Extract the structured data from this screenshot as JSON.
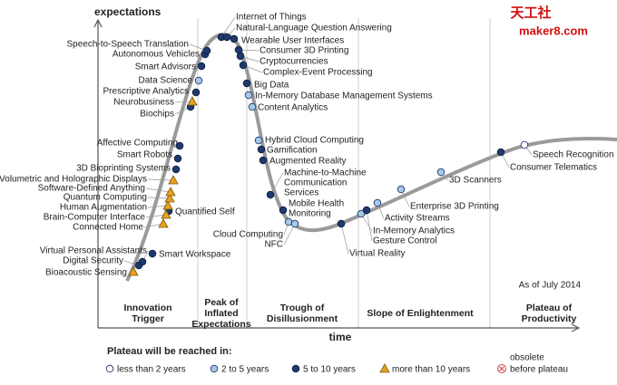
{
  "axis": {
    "y": "expectations",
    "x": "time"
  },
  "logo": {
    "name": "天工社",
    "site": "maker8.com"
  },
  "as_of": "As of July 2014",
  "phases": [
    [
      "Innovation",
      "Trigger"
    ],
    [
      "Peak of",
      "Inflated",
      "Expectations"
    ],
    [
      "Trough of",
      "Disillusionment"
    ],
    [
      "Slope of Enlightenment"
    ],
    [
      "Plateau of",
      "Productivity"
    ]
  ],
  "legend": {
    "title": "Plateau will be reached in:",
    "obsolete": [
      "obsolete",
      "before plateau"
    ]
  },
  "groups": [
    {
      "label": "less than 2 years",
      "technologies": [
        "Speech Recognition"
      ]
    },
    {
      "label": "2 to 5 years",
      "technologies": [
        "Data Science",
        "In-Memory Database Management Systems",
        "Content Analytics",
        "Hybrid Cloud Computing",
        "Cloud Computing",
        "NFC",
        "In-Memory Analytics",
        "Activity  Streams",
        "Enterprise 3D Printing",
        "3D Scanners"
      ]
    },
    {
      "label": "5 to 10 years",
      "technologies": [
        "Digital Security",
        "Virtual Personal Assistants",
        "Smart Workspace",
        "Quantified Self",
        "3D Bioprinting Systems",
        "Smart Robots",
        "Affective  Computing",
        "Biochips",
        "Prescriptive Analytics",
        "Smart Advisors",
        "Autonomous Vehicles",
        "Speech-to-Speech Translation",
        "Internet of Things",
        "Natural-Language Question Answering",
        "Wearable User Interfaces",
        "Consumer 3D Printing",
        "Cryptocurrencies",
        "Complex-Event Processing",
        "Big Data",
        "Gamification",
        "Augmented Reality",
        [
          "Machine-to-Machine",
          "Communication",
          "Services"
        ],
        [
          "Mobile Health",
          "Monitoring"
        ],
        "Virtual Reality",
        "Gesture Control",
        "Consumer Telematics"
      ]
    },
    {
      "label": "more than 10 years",
      "technologies": [
        "Bioacoustic Sensing",
        "Connected Home",
        "Brain-Computer Interface",
        "Human Augmentation",
        "Quantum Computing",
        "Software-Defined Anything",
        "Volumetric and Holographic Displays",
        "Neurobusiness"
      ]
    }
  ]
}
